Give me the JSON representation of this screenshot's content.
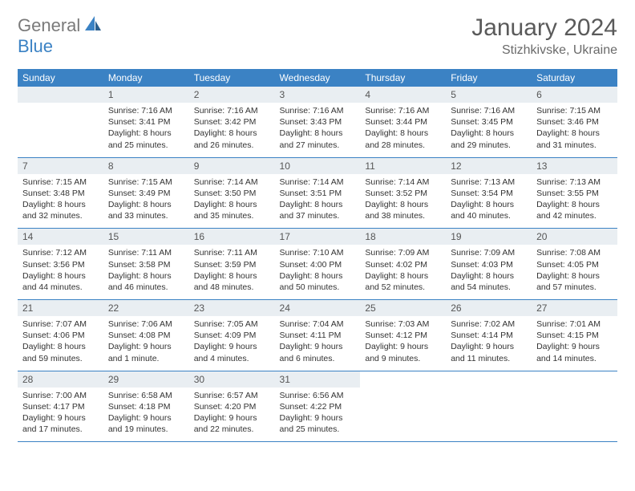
{
  "logo": {
    "text1": "General",
    "text2": "Blue"
  },
  "title": "January 2024",
  "location": "Stizhkivske, Ukraine",
  "dayNames": [
    "Sunday",
    "Monday",
    "Tuesday",
    "Wednesday",
    "Thursday",
    "Friday",
    "Saturday"
  ],
  "colors": {
    "headerBlue": "#3b82c4",
    "dayBg": "#e9eef2",
    "text": "#333333"
  },
  "weeks": [
    [
      null,
      {
        "n": "1",
        "sr": "7:16 AM",
        "ss": "3:41 PM",
        "dl": "8 hours and 25 minutes."
      },
      {
        "n": "2",
        "sr": "7:16 AM",
        "ss": "3:42 PM",
        "dl": "8 hours and 26 minutes."
      },
      {
        "n": "3",
        "sr": "7:16 AM",
        "ss": "3:43 PM",
        "dl": "8 hours and 27 minutes."
      },
      {
        "n": "4",
        "sr": "7:16 AM",
        "ss": "3:44 PM",
        "dl": "8 hours and 28 minutes."
      },
      {
        "n": "5",
        "sr": "7:16 AM",
        "ss": "3:45 PM",
        "dl": "8 hours and 29 minutes."
      },
      {
        "n": "6",
        "sr": "7:15 AM",
        "ss": "3:46 PM",
        "dl": "8 hours and 31 minutes."
      }
    ],
    [
      {
        "n": "7",
        "sr": "7:15 AM",
        "ss": "3:48 PM",
        "dl": "8 hours and 32 minutes."
      },
      {
        "n": "8",
        "sr": "7:15 AM",
        "ss": "3:49 PM",
        "dl": "8 hours and 33 minutes."
      },
      {
        "n": "9",
        "sr": "7:14 AM",
        "ss": "3:50 PM",
        "dl": "8 hours and 35 minutes."
      },
      {
        "n": "10",
        "sr": "7:14 AM",
        "ss": "3:51 PM",
        "dl": "8 hours and 37 minutes."
      },
      {
        "n": "11",
        "sr": "7:14 AM",
        "ss": "3:52 PM",
        "dl": "8 hours and 38 minutes."
      },
      {
        "n": "12",
        "sr": "7:13 AM",
        "ss": "3:54 PM",
        "dl": "8 hours and 40 minutes."
      },
      {
        "n": "13",
        "sr": "7:13 AM",
        "ss": "3:55 PM",
        "dl": "8 hours and 42 minutes."
      }
    ],
    [
      {
        "n": "14",
        "sr": "7:12 AM",
        "ss": "3:56 PM",
        "dl": "8 hours and 44 minutes."
      },
      {
        "n": "15",
        "sr": "7:11 AM",
        "ss": "3:58 PM",
        "dl": "8 hours and 46 minutes."
      },
      {
        "n": "16",
        "sr": "7:11 AM",
        "ss": "3:59 PM",
        "dl": "8 hours and 48 minutes."
      },
      {
        "n": "17",
        "sr": "7:10 AM",
        "ss": "4:00 PM",
        "dl": "8 hours and 50 minutes."
      },
      {
        "n": "18",
        "sr": "7:09 AM",
        "ss": "4:02 PM",
        "dl": "8 hours and 52 minutes."
      },
      {
        "n": "19",
        "sr": "7:09 AM",
        "ss": "4:03 PM",
        "dl": "8 hours and 54 minutes."
      },
      {
        "n": "20",
        "sr": "7:08 AM",
        "ss": "4:05 PM",
        "dl": "8 hours and 57 minutes."
      }
    ],
    [
      {
        "n": "21",
        "sr": "7:07 AM",
        "ss": "4:06 PM",
        "dl": "8 hours and 59 minutes."
      },
      {
        "n": "22",
        "sr": "7:06 AM",
        "ss": "4:08 PM",
        "dl": "9 hours and 1 minute."
      },
      {
        "n": "23",
        "sr": "7:05 AM",
        "ss": "4:09 PM",
        "dl": "9 hours and 4 minutes."
      },
      {
        "n": "24",
        "sr": "7:04 AM",
        "ss": "4:11 PM",
        "dl": "9 hours and 6 minutes."
      },
      {
        "n": "25",
        "sr": "7:03 AM",
        "ss": "4:12 PM",
        "dl": "9 hours and 9 minutes."
      },
      {
        "n": "26",
        "sr": "7:02 AM",
        "ss": "4:14 PM",
        "dl": "9 hours and 11 minutes."
      },
      {
        "n": "27",
        "sr": "7:01 AM",
        "ss": "4:15 PM",
        "dl": "9 hours and 14 minutes."
      }
    ],
    [
      {
        "n": "28",
        "sr": "7:00 AM",
        "ss": "4:17 PM",
        "dl": "9 hours and 17 minutes."
      },
      {
        "n": "29",
        "sr": "6:58 AM",
        "ss": "4:18 PM",
        "dl": "9 hours and 19 minutes."
      },
      {
        "n": "30",
        "sr": "6:57 AM",
        "ss": "4:20 PM",
        "dl": "9 hours and 22 minutes."
      },
      {
        "n": "31",
        "sr": "6:56 AM",
        "ss": "4:22 PM",
        "dl": "9 hours and 25 minutes."
      },
      null,
      null,
      null
    ]
  ],
  "labels": {
    "sunrise": "Sunrise: ",
    "sunset": "Sunset: ",
    "daylight": "Daylight: "
  }
}
